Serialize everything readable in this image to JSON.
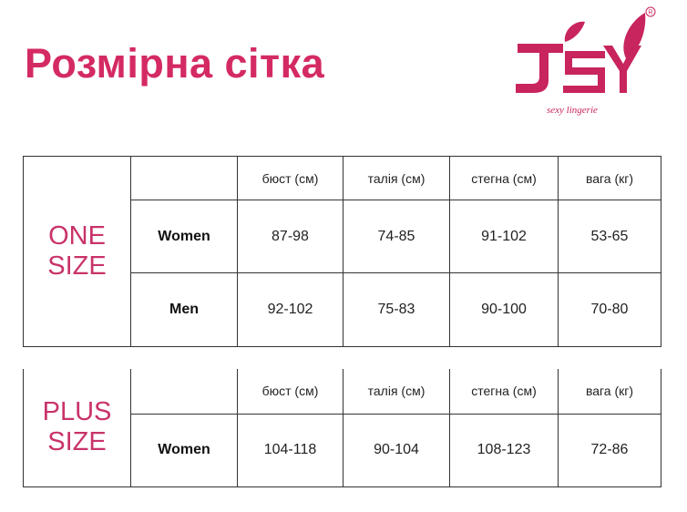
{
  "title": "Розмірна сітка",
  "logo": {
    "text": "JSY",
    "tagline": "sexy lingerie",
    "mark": "®",
    "color": "#c8245e"
  },
  "accent_color": "#d42a63",
  "columns": [
    "бюст (см)",
    "талія (см)",
    "стегна (см)",
    "вага (кг)"
  ],
  "tables": [
    {
      "size_line1": "ONE",
      "size_line2": "SIZE",
      "rows": [
        {
          "label": "Women",
          "values": [
            "87-98",
            "74-85",
            "91-102",
            "53-65"
          ]
        },
        {
          "label": "Men",
          "values": [
            "92-102",
            "75-83",
            "90-100",
            "70-80"
          ]
        }
      ]
    },
    {
      "size_line1": "PLUS",
      "size_line2": "SIZE",
      "rows": [
        {
          "label": "Women",
          "values": [
            "104-118",
            "90-104",
            "108-123",
            "72-86"
          ]
        }
      ]
    }
  ]
}
